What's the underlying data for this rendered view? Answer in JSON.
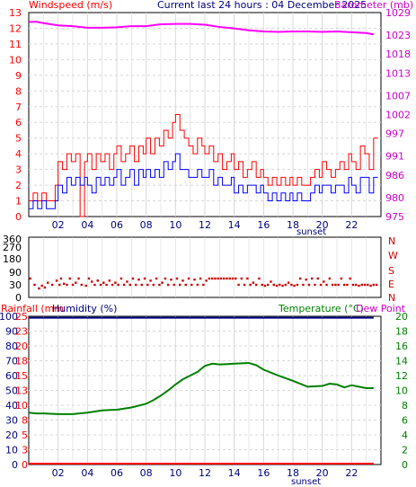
{
  "header": {
    "title": "Current last 24 hours : 04 December 2025",
    "left_label": "Windspeed (m/s)",
    "right_label": "Barometer (mb)"
  },
  "colors": {
    "gust": "#ff0000",
    "avg": "#0000ff",
    "barometer": "#ff00ff",
    "direction": "#cc0000",
    "temperature": "#008000",
    "humidity": "#000080",
    "rain": "#ff0000",
    "grid": "#d8d8d8",
    "axis": "#000000"
  },
  "chart_data": [
    {
      "type": "line",
      "name": "windspeed-barometer",
      "x_ticks": [
        "02",
        "04",
        "06",
        "08",
        "10",
        "12",
        "14",
        "16",
        "18",
        "20",
        "22"
      ],
      "annotation": "sunset",
      "xlim": [
        0,
        24
      ],
      "y_left": {
        "label": "Windspeed (m/s)",
        "ticks": [
          0,
          1,
          2,
          3,
          4,
          5,
          6,
          7,
          8,
          9,
          10,
          11,
          12,
          13
        ],
        "ylim": [
          0,
          13
        ]
      },
      "y_right": {
        "label": "Barometer (mb)",
        "ticks": [
          975,
          980,
          986,
          991,
          997,
          1002,
          1007,
          1013,
          1018,
          1023,
          1029
        ],
        "ylim": [
          975,
          1029
        ]
      },
      "series": [
        {
          "name": "gust",
          "axis": "left",
          "step": true,
          "x": [
            0.0,
            0.3,
            0.6,
            0.9,
            1.2,
            1.5,
            1.8,
            2.0,
            2.3,
            2.6,
            2.9,
            3.2,
            3.5,
            3.8,
            4.0,
            4.3,
            4.6,
            4.9,
            5.2,
            5.5,
            5.8,
            6.0,
            6.3,
            6.6,
            6.9,
            7.2,
            7.5,
            7.8,
            8.0,
            8.3,
            8.6,
            8.9,
            9.2,
            9.5,
            9.8,
            10.0,
            10.3,
            10.6,
            10.9,
            11.2,
            11.5,
            11.8,
            12.0,
            12.3,
            12.6,
            12.9,
            13.2,
            13.5,
            13.8,
            14.0,
            14.3,
            14.6,
            14.9,
            15.2,
            15.5,
            15.8,
            16.0,
            16.3,
            16.6,
            16.9,
            17.2,
            17.5,
            17.8,
            18.0,
            18.3,
            18.6,
            18.9,
            19.2,
            19.5,
            19.8,
            20.0,
            20.3,
            20.6,
            20.9,
            21.2,
            21.5,
            21.8,
            22.0,
            22.3,
            22.6,
            22.9,
            23.2,
            23.5
          ],
          "values": [
            1.0,
            1.5,
            1.0,
            1.5,
            1.0,
            1.0,
            2.0,
            3.5,
            3.0,
            4.0,
            3.5,
            4.0,
            0.0,
            3.5,
            4.0,
            3.0,
            4.0,
            3.5,
            4.0,
            3.0,
            4.0,
            4.5,
            3.5,
            4.0,
            4.5,
            3.5,
            4.5,
            4.0,
            5.0,
            4.0,
            5.0,
            4.5,
            5.5,
            5.0,
            6.0,
            6.5,
            5.5,
            5.0,
            4.5,
            4.0,
            5.0,
            4.5,
            4.0,
            4.5,
            3.5,
            4.0,
            3.0,
            3.5,
            4.0,
            3.0,
            3.5,
            2.5,
            3.0,
            3.5,
            2.5,
            3.0,
            2.5,
            2.0,
            2.5,
            2.0,
            2.5,
            2.0,
            2.5,
            2.0,
            2.5,
            2.0,
            2.0,
            2.5,
            3.0,
            2.5,
            3.5,
            3.0,
            2.5,
            3.0,
            3.5,
            3.0,
            4.0,
            3.5,
            3.0,
            4.5,
            4.0,
            3.0,
            5.0
          ]
        },
        {
          "name": "average",
          "axis": "left",
          "step": true,
          "x": [
            0.0,
            0.3,
            0.6,
            0.9,
            1.2,
            1.5,
            1.8,
            2.0,
            2.3,
            2.6,
            2.9,
            3.2,
            3.5,
            3.8,
            4.0,
            4.3,
            4.6,
            4.9,
            5.2,
            5.5,
            5.8,
            6.0,
            6.3,
            6.6,
            6.9,
            7.2,
            7.5,
            7.8,
            8.0,
            8.3,
            8.6,
            8.9,
            9.2,
            9.5,
            9.8,
            10.0,
            10.3,
            10.6,
            10.9,
            11.2,
            11.5,
            11.8,
            12.0,
            12.3,
            12.6,
            12.9,
            13.2,
            13.5,
            13.8,
            14.0,
            14.3,
            14.6,
            14.9,
            15.2,
            15.5,
            15.8,
            16.0,
            16.3,
            16.6,
            16.9,
            17.2,
            17.5,
            17.8,
            18.0,
            18.3,
            18.6,
            18.9,
            19.2,
            19.5,
            19.8,
            20.0,
            20.3,
            20.6,
            20.9,
            21.2,
            21.5,
            21.8,
            22.0,
            22.3,
            22.6,
            22.9,
            23.2,
            23.5
          ],
          "values": [
            0.5,
            1.0,
            0.5,
            1.0,
            0.5,
            0.5,
            1.0,
            2.0,
            1.5,
            2.5,
            2.0,
            2.5,
            2.0,
            2.5,
            2.0,
            1.5,
            2.5,
            2.0,
            2.5,
            2.0,
            2.5,
            3.0,
            2.0,
            2.5,
            3.0,
            2.0,
            3.0,
            2.5,
            3.0,
            2.5,
            3.0,
            2.5,
            3.5,
            3.0,
            3.5,
            4.0,
            3.0,
            3.0,
            2.5,
            2.5,
            3.0,
            2.5,
            2.5,
            3.0,
            2.0,
            2.5,
            2.0,
            2.0,
            2.5,
            1.5,
            2.0,
            1.5,
            2.0,
            2.0,
            1.5,
            2.0,
            1.5,
            1.0,
            1.5,
            1.0,
            1.5,
            1.0,
            1.5,
            1.0,
            1.5,
            1.0,
            1.0,
            1.5,
            2.0,
            1.5,
            2.0,
            2.0,
            1.5,
            2.0,
            2.0,
            1.5,
            2.5,
            2.0,
            1.5,
            2.5,
            2.5,
            1.5,
            2.5
          ]
        },
        {
          "name": "barometer",
          "axis": "right",
          "x": [
            0.0,
            0.5,
            1.0,
            2.0,
            3.0,
            4.0,
            5.0,
            6.0,
            7.0,
            8.0,
            9.0,
            10.0,
            11.0,
            12.0,
            13.0,
            14.0,
            15.0,
            16.0,
            17.0,
            18.0,
            19.0,
            20.0,
            21.0,
            22.0,
            23.0,
            23.5
          ],
          "values": [
            1026.5,
            1026.6,
            1026.2,
            1025.6,
            1025.4,
            1025.0,
            1025.0,
            1025.1,
            1025.4,
            1025.4,
            1025.9,
            1026.0,
            1026.0,
            1025.8,
            1025.2,
            1024.8,
            1024.3,
            1024.0,
            1023.9,
            1024.0,
            1024.0,
            1023.9,
            1024.0,
            1023.8,
            1023.6,
            1023.2
          ]
        }
      ]
    },
    {
      "type": "scatter",
      "name": "wind-direction",
      "xlim": [
        0,
        24
      ],
      "y_left": {
        "ticks": [
          0,
          30,
          90,
          180,
          270,
          360
        ],
        "ylim": [
          0,
          360
        ]
      },
      "y_right": {
        "ticks": [
          "N",
          "E",
          "S",
          "W",
          "N"
        ]
      },
      "points": [
        [
          0.1,
          60
        ],
        [
          0.4,
          30
        ],
        [
          0.7,
          10
        ],
        [
          0.9,
          25
        ],
        [
          1.1,
          15
        ],
        [
          1.3,
          40
        ],
        [
          1.6,
          30
        ],
        [
          1.9,
          50
        ],
        [
          2.1,
          30
        ],
        [
          2.2,
          60
        ],
        [
          2.4,
          35
        ],
        [
          2.6,
          30
        ],
        [
          2.8,
          60
        ],
        [
          3.0,
          30
        ],
        [
          3.2,
          40
        ],
        [
          3.4,
          60
        ],
        [
          3.6,
          30
        ],
        [
          3.9,
          25
        ],
        [
          4.1,
          60
        ],
        [
          4.3,
          45
        ],
        [
          4.5,
          30
        ],
        [
          4.7,
          50
        ],
        [
          4.9,
          30
        ],
        [
          5.1,
          40
        ],
        [
          5.3,
          30
        ],
        [
          5.5,
          50
        ],
        [
          5.7,
          30
        ],
        [
          5.9,
          40
        ],
        [
          6.1,
          30
        ],
        [
          6.3,
          60
        ],
        [
          6.5,
          30
        ],
        [
          6.7,
          45
        ],
        [
          6.9,
          30
        ],
        [
          7.1,
          60
        ],
        [
          7.3,
          30
        ],
        [
          7.5,
          55
        ],
        [
          7.7,
          30
        ],
        [
          7.9,
          60
        ],
        [
          8.1,
          30
        ],
        [
          8.3,
          50
        ],
        [
          8.5,
          30
        ],
        [
          8.7,
          60
        ],
        [
          8.9,
          30
        ],
        [
          9.1,
          40
        ],
        [
          9.3,
          60
        ],
        [
          9.5,
          30
        ],
        [
          9.7,
          55
        ],
        [
          9.9,
          30
        ],
        [
          10.1,
          60
        ],
        [
          10.3,
          30
        ],
        [
          10.5,
          50
        ],
        [
          10.7,
          30
        ],
        [
          10.9,
          60
        ],
        [
          11.1,
          30
        ],
        [
          11.3,
          55
        ],
        [
          11.5,
          30
        ],
        [
          11.7,
          60
        ],
        [
          11.9,
          30
        ],
        [
          12.1,
          50
        ],
        [
          12.3,
          60
        ],
        [
          12.5,
          60
        ],
        [
          12.7,
          60
        ],
        [
          12.9,
          60
        ],
        [
          13.1,
          60
        ],
        [
          13.3,
          60
        ],
        [
          13.5,
          60
        ],
        [
          13.7,
          60
        ],
        [
          13.9,
          60
        ],
        [
          14.1,
          60
        ],
        [
          14.3,
          30
        ],
        [
          14.5,
          60
        ],
        [
          14.7,
          30
        ],
        [
          14.9,
          60
        ],
        [
          15.1,
          30
        ],
        [
          15.3,
          40
        ],
        [
          15.5,
          30
        ],
        [
          15.7,
          60
        ],
        [
          15.9,
          30
        ],
        [
          16.1,
          25
        ],
        [
          16.3,
          30
        ],
        [
          16.5,
          45
        ],
        [
          16.7,
          30
        ],
        [
          16.9,
          25
        ],
        [
          17.1,
          30
        ],
        [
          17.3,
          25
        ],
        [
          17.5,
          30
        ],
        [
          17.7,
          40
        ],
        [
          17.9,
          30
        ],
        [
          18.1,
          25
        ],
        [
          18.3,
          30
        ],
        [
          18.5,
          60
        ],
        [
          18.7,
          30
        ],
        [
          18.9,
          55
        ],
        [
          19.1,
          30
        ],
        [
          19.3,
          60
        ],
        [
          19.5,
          30
        ],
        [
          19.7,
          60
        ],
        [
          19.9,
          30
        ],
        [
          20.1,
          45
        ],
        [
          20.3,
          30
        ],
        [
          20.5,
          60
        ],
        [
          20.7,
          30
        ],
        [
          20.9,
          30
        ],
        [
          21.1,
          30
        ],
        [
          21.3,
          60
        ],
        [
          21.5,
          30
        ],
        [
          21.7,
          30
        ],
        [
          21.9,
          60
        ],
        [
          22.1,
          30
        ],
        [
          22.3,
          30
        ],
        [
          22.5,
          25
        ],
        [
          22.7,
          30
        ],
        [
          22.9,
          30
        ],
        [
          23.1,
          30
        ],
        [
          23.3,
          25
        ],
        [
          23.5,
          30
        ],
        [
          23.7,
          30
        ]
      ]
    },
    {
      "type": "line",
      "name": "temperature-humidity-rain",
      "x_ticks": [
        "02",
        "04",
        "06",
        "08",
        "10",
        "12",
        "14",
        "16",
        "18",
        "20",
        "22"
      ],
      "annotation": "sunset",
      "xlim": [
        0,
        24
      ],
      "labels": {
        "rainfall": "Rainfall (mm",
        "humidity": "Humidity (%)",
        "temperature": "Temperature (°C)",
        "dewpoint": "Dew Point"
      },
      "y_humidity": {
        "ticks": [
          0,
          10,
          20,
          30,
          40,
          50,
          60,
          70,
          80,
          90,
          100
        ],
        "ylim": [
          0,
          100
        ]
      },
      "y_rain": {
        "ticks": [
          0,
          3,
          5,
          8,
          10,
          13,
          15,
          18,
          20,
          23,
          25
        ],
        "ylim": [
          0,
          25
        ]
      },
      "y_temp": {
        "ticks": [
          0,
          2,
          4,
          6,
          8,
          10,
          12,
          14,
          16,
          18,
          20
        ],
        "ylim": [
          0,
          20
        ]
      },
      "series": [
        {
          "name": "temperature",
          "axis": "temp",
          "x": [
            0.0,
            0.5,
            1.0,
            2.0,
            3.0,
            4.0,
            5.0,
            6.0,
            7.0,
            8.0,
            8.5,
            9.0,
            9.5,
            10.0,
            10.5,
            11.0,
            11.5,
            12.0,
            12.5,
            13.0,
            14.0,
            15.0,
            15.5,
            16.0,
            17.0,
            18.0,
            19.0,
            20.0,
            20.5,
            21.0,
            21.5,
            22.0,
            23.0,
            23.5
          ],
          "values": [
            7.0,
            6.9,
            6.9,
            6.8,
            6.8,
            7.0,
            7.3,
            7.4,
            7.7,
            8.2,
            8.7,
            9.3,
            10.0,
            10.8,
            11.5,
            12.0,
            12.5,
            13.3,
            13.6,
            13.5,
            13.6,
            13.7,
            13.4,
            12.8,
            12.0,
            11.3,
            10.5,
            10.6,
            10.9,
            10.8,
            10.4,
            10.7,
            10.3,
            10.3
          ]
        },
        {
          "name": "humidity",
          "axis": "humidity",
          "x": [
            0.0,
            23.5
          ],
          "values": [
            99,
            99
          ]
        },
        {
          "name": "rainfall",
          "axis": "rain",
          "x": [
            0.0,
            23.5
          ],
          "values": [
            0,
            0
          ]
        }
      ]
    }
  ]
}
